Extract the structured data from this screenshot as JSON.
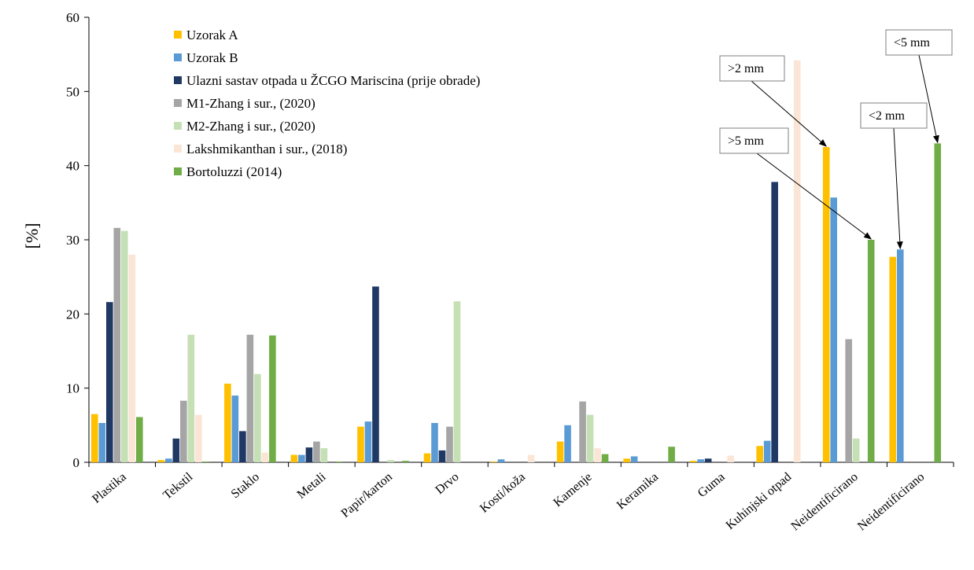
{
  "chart_data": {
    "type": "bar",
    "ylabel": "[%]",
    "ylim": [
      0,
      60
    ],
    "yticks": [
      0,
      10,
      20,
      30,
      40,
      50,
      60
    ],
    "grid": false,
    "legend_position": "top-left",
    "categories": [
      "Plastika",
      "Tekstil",
      "Staklo",
      "Metali",
      "Papir/karton",
      "Drvo",
      "Kosti/koža",
      "Kamenje",
      "Keramika",
      "Guma",
      "Kuhinjski otpad",
      "Neidentificirano",
      "Neidentificirano"
    ],
    "series": [
      {
        "name": "Uzorak A",
        "color": "#FFC000",
        "values": [
          6.5,
          0.3,
          10.6,
          1.0,
          4.8,
          1.2,
          0.1,
          2.8,
          0.5,
          0.2,
          2.2,
          42.5,
          27.7
        ]
      },
      {
        "name": "Uzorak B",
        "color": "#5B9BD5",
        "values": [
          5.3,
          0.5,
          9.0,
          1.0,
          5.5,
          5.3,
          0.4,
          5.0,
          0.8,
          0.4,
          2.9,
          35.7,
          28.7
        ]
      },
      {
        "name": "Ulazni sastav otpada u ŽCGO Mariscina (prije obrade)",
        "color": "#203864",
        "values": [
          21.6,
          3.2,
          4.2,
          2.0,
          23.7,
          1.6,
          0.0,
          0.0,
          0.0,
          0.5,
          37.8,
          0,
          0
        ]
      },
      {
        "name": "M1-Zhang i sur., (2020)",
        "color": "#A5A5A5",
        "values": [
          31.6,
          8.3,
          17.2,
          2.8,
          0.0,
          4.8,
          0.0,
          8.2,
          0.0,
          0.0,
          0,
          16.6,
          0
        ]
      },
      {
        "name": "M2-Zhang i sur., (2020)",
        "color": "#C5E0B4",
        "values": [
          31.2,
          17.2,
          11.9,
          1.9,
          0.3,
          21.7,
          0.0,
          6.4,
          0.0,
          0.0,
          0,
          3.2,
          0
        ]
      },
      {
        "name": "Lakshmikanthan i sur., (2018)",
        "color": "#FBE5D6",
        "values": [
          28.0,
          6.4,
          1.3,
          0.0,
          0.0,
          0.0,
          1.0,
          1.9,
          0.0,
          0.9,
          54.2,
          0,
          0
        ]
      },
      {
        "name": "Bortoluzzi (2014)",
        "color": "#70AD47",
        "values": [
          6.1,
          0.1,
          17.1,
          0.1,
          0.2,
          0.0,
          0.0,
          1.1,
          2.1,
          0.0,
          0,
          30.0,
          43.0
        ]
      }
    ],
    "annotations": [
      {
        "text": ">2 mm",
        "target_category": 11,
        "target_series": 0
      },
      {
        "text": ">5 mm",
        "target_category": 11,
        "target_series": 6
      },
      {
        "text": "<2 mm",
        "target_category": 12,
        "target_series": 1
      },
      {
        "text": "<5 mm",
        "target_category": 12,
        "target_series": 6
      }
    ]
  }
}
